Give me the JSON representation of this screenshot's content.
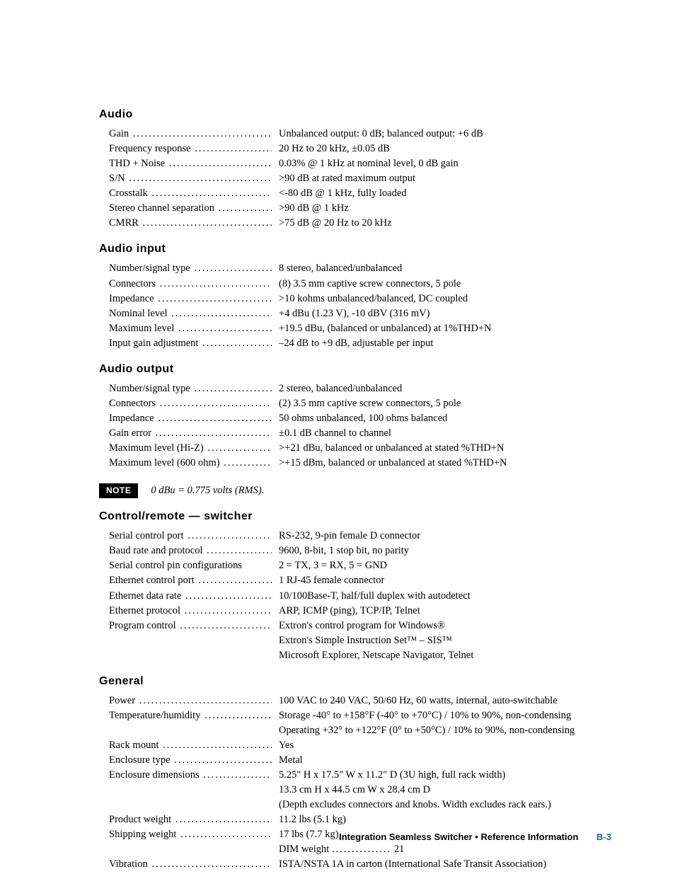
{
  "sections": {
    "audio": {
      "heading": "Audio",
      "rows": [
        {
          "label": "Gain",
          "value": "Unbalanced output: 0 dB; balanced output: +6 dB"
        },
        {
          "label": "Frequency  response",
          "value": "20 Hz to 20 kHz, ±0.05 dB"
        },
        {
          "label": "THD + Noise",
          "value": "0.03% @ 1 kHz at nominal level, 0 dB gain"
        },
        {
          "label": "S/N",
          "value": ">90 dB at rated maximum output"
        },
        {
          "label": "Crosstalk",
          "value": "<-80 dB @ 1 kHz, fully loaded"
        },
        {
          "label": "Stereo channel separation",
          "value": ">90 dB @ 1 kHz"
        },
        {
          "label": "CMRR",
          "value": ">75 dB @ 20 Hz to 20 kHz"
        }
      ]
    },
    "audio_input": {
      "heading": "Audio  input",
      "rows": [
        {
          "label": "Number/signal type",
          "value": "8 stereo, balanced/unbalanced"
        },
        {
          "label": "Connectors",
          "value": "(8) 3.5 mm captive screw connectors, 5 pole"
        },
        {
          "label": "Impedance",
          "value": ">10 kohms unbalanced/balanced, DC coupled"
        },
        {
          "label": "Nominal level",
          "value": "+4 dBu (1.23 V), -10 dBV (316 mV)"
        },
        {
          "label": "Maximum level",
          "value": "+19.5 dBu, (balanced or unbalanced) at 1%THD+N"
        },
        {
          "label": "Input gain adjustment",
          "value": "–24 dB to +9 dB, adjustable per input"
        }
      ]
    },
    "audio_output": {
      "heading": "Audio  output",
      "rows": [
        {
          "label": "Number/signal type",
          "value": "2 stereo, balanced/unbalanced"
        },
        {
          "label": "Connectors",
          "value": "(2) 3.5 mm captive screw connectors, 5 pole"
        },
        {
          "label": "Impedance",
          "value": "50 ohms unbalanced,  100 ohms balanced"
        },
        {
          "label": "Gain error",
          "value": "±0.1 dB channel to channel"
        },
        {
          "label": "Maximum level (Hi-Z)",
          "value": ">+21 dBu, balanced or unbalanced at stated %THD+N"
        },
        {
          "label": "Maximum level (600 ohm)",
          "value": ">+15 dBm, balanced or unbalanced at stated %THD+N"
        }
      ]
    },
    "control": {
      "heading": "Control/remote  —  switcher",
      "rows": [
        {
          "label": "Serial control port",
          "value": "RS-232, 9-pin female D connector"
        },
        {
          "label": "Baud rate and protocol",
          "value": "9600, 8-bit, 1 stop bit, no parity"
        },
        {
          "label": "Serial control pin configurations",
          "value": "2 = TX, 3 = RX, 5 = GND",
          "no_dots": true
        },
        {
          "label": "Ethernet control port",
          "value": "1 RJ-45 female connector"
        },
        {
          "label": "Ethernet data rate",
          "value": "10/100Base-T, half/full duplex with autodetect"
        },
        {
          "label": "Ethernet protocol",
          "value": "ARP, ICMP (ping), TCP/IP, Telnet"
        },
        {
          "label": "Program control",
          "value": "Extron's control program for Windows®"
        },
        {
          "label": "",
          "value": "Extron's Simple Instruction Set™ – SIS™",
          "no_dots": true
        },
        {
          "label": "",
          "value": "Microsoft Explorer, Netscape Navigator, Telnet",
          "no_dots": true
        }
      ]
    },
    "general": {
      "heading": "General",
      "rows": [
        {
          "label": "Power",
          "value": "100 VAC to 240 VAC, 50/60 Hz, 60 watts, internal, auto-switchable"
        },
        {
          "label": "Temperature/humidity",
          "value": "Storage -40° to +158°F (-40° to +70°C) / 10% to 90%, non-condensing"
        },
        {
          "label": "",
          "value": "Operating +32° to +122°F (0° to +50°C) / 10% to 90%, non-condensing",
          "no_dots": true
        },
        {
          "label": "Rack mount",
          "value": "Yes"
        },
        {
          "label": "Enclosure type",
          "value": "Metal"
        },
        {
          "label": "Enclosure dimensions",
          "value": "5.25\" H x 17.5\" W x 11.2\" D  (3U high, full rack width)"
        },
        {
          "label": "",
          "value": "13.3 cm H x  44.5 cm W x  28.4 cm D",
          "no_dots": true
        },
        {
          "label": "",
          "value": "(Depth excludes connectors and knobs.  Width excludes rack ears.)",
          "no_dots": true
        },
        {
          "label": "Product weight",
          "value": "11.2 lbs (5.1 kg)"
        },
        {
          "label": "Shipping weight",
          "value": "17 lbs (7.7 kg)"
        },
        {
          "label": "",
          "value_label": "DIM weight",
          "value": "21",
          "no_dots": true,
          "inner_spec": true
        },
        {
          "label": "Vibration",
          "value": "ISTA/NSTA 1A in carton (International Safe Transit Association)"
        }
      ]
    }
  },
  "note": {
    "badge": "NOTE",
    "text": "0 dBu = 0.775 volts (RMS)."
  },
  "footer": {
    "title": "Integration Seamless Switcher • Reference Information",
    "page": "B-3"
  }
}
